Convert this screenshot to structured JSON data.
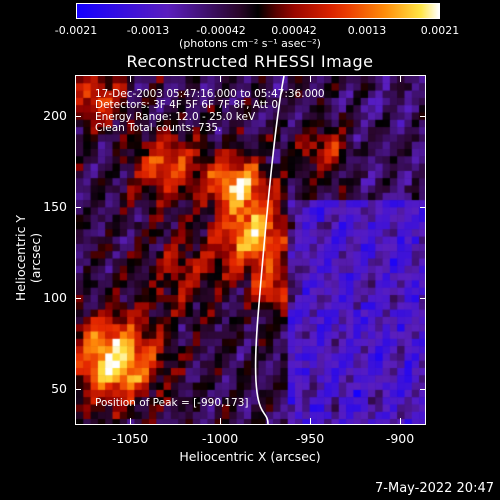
{
  "colorbar": {
    "ticks": [
      "-0.0021",
      "-0.0013",
      "-0.00042",
      "0.00042",
      "0.0013",
      "0.0021"
    ],
    "units": "(photons cm⁻² s⁻¹ asec⁻²)"
  },
  "title": "Reconstructed RHESSI Image",
  "info": {
    "line1": "17-Dec-2003 05:47:16.000 to 05:47:36.000",
    "line2": "Detectors: 3F 4F 5F 6F 7F 8F, Att 0",
    "line3": "Energy Range: 12.0 - 25.0 keV",
    "line4": "Clean     Total counts: 735."
  },
  "peak": "Position of Peak = [-990,173]",
  "axes": {
    "xlabel": "Heliocentric X (arcsec)",
    "ylabel": "Heliocentric Y (arcsec)",
    "xticks": [
      "-1050",
      "-1000",
      "-950",
      "-900"
    ],
    "yticks": [
      "200",
      "150",
      "100",
      "50"
    ]
  },
  "date_stamp": "7-May-2022 20:47"
}
